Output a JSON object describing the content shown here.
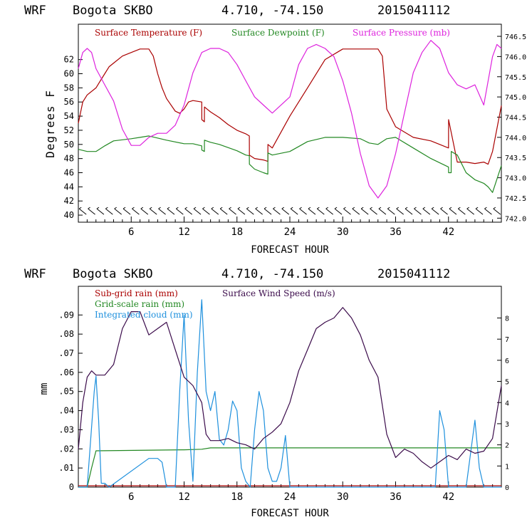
{
  "chart_data": [
    {
      "type": "line",
      "header": {
        "model": "WRF",
        "station": "Bogota SKBO",
        "coords": "4.710, -74.150",
        "run": "2015041112"
      },
      "xlabel": "FORECAST HOUR",
      "ylabel": "Degrees F",
      "xlim": [
        0,
        48
      ],
      "ylim": [
        39,
        67
      ],
      "y2lim": [
        741.9,
        746.8
      ],
      "xticks": [
        "6",
        "12",
        "18",
        "24",
        "30",
        "36",
        "42"
      ],
      "yticks": [
        "40",
        "42",
        "44",
        "46",
        "48",
        "50",
        "52",
        "54",
        "56",
        "58",
        "60",
        "62"
      ],
      "y2ticks": [
        "742.0",
        "742.5",
        "743.0",
        "743.5",
        "744.0",
        "744.5",
        "745.0",
        "745.5",
        "746.0",
        "746.5"
      ],
      "wind_barbs": "yes",
      "series": [
        {
          "name": "Surface Temperature (F)",
          "color": "#aa0000",
          "axis": "left",
          "x": [
            0,
            0.5,
            1,
            2,
            2.5,
            3,
            3.5,
            4,
            5,
            6,
            7,
            8,
            8.5,
            9,
            9.5,
            10,
            11,
            11.5,
            12,
            12.5,
            13,
            14,
            14.01,
            14.3,
            14.31,
            15,
            16,
            17,
            18,
            19,
            19.4,
            19.41,
            20,
            21,
            21.5,
            21.51,
            22,
            24,
            26,
            28,
            30,
            32,
            34,
            34.5,
            35,
            36,
            38,
            40,
            42,
            42.01,
            43,
            44,
            45,
            46,
            46.5,
            47,
            48
          ],
          "values": [
            53,
            56,
            57,
            58,
            59,
            60,
            61,
            61.5,
            62.5,
            63,
            63.5,
            63.5,
            62.5,
            60,
            58,
            56.5,
            54.7,
            54.4,
            55,
            56,
            56.2,
            56,
            53.5,
            53.2,
            55.3,
            54.6,
            53.8,
            52.8,
            52,
            51.5,
            51.2,
            48.5,
            48,
            47.8,
            47.6,
            50,
            49.5,
            54,
            58,
            62,
            63.5,
            63.5,
            63.5,
            62.5,
            55,
            52.5,
            51,
            50.5,
            49.5,
            53.5,
            47.5,
            47.5,
            47.3,
            47.5,
            47.2,
            49,
            55.5
          ]
        },
        {
          "name": "Surface Dewpoint (F)",
          "color": "#228822",
          "axis": "left",
          "x": [
            0,
            1,
            2,
            3,
            4,
            6,
            7,
            8,
            10,
            12,
            13,
            14,
            14.01,
            14.3,
            14.31,
            15,
            16,
            18,
            19,
            19.4,
            19.41,
            20,
            21,
            21.5,
            21.51,
            22,
            24,
            26,
            28,
            30,
            32,
            33,
            34,
            35,
            36,
            38,
            40,
            42,
            42.01,
            42.3,
            42.31,
            43,
            44,
            45,
            46,
            46.5,
            47,
            48
          ],
          "values": [
            49.3,
            49,
            49,
            49.8,
            50.5,
            50.8,
            51,
            51.2,
            50.6,
            50.1,
            50.1,
            49.8,
            49.2,
            49,
            50.6,
            50.3,
            50,
            49.1,
            48.5,
            48.4,
            47.2,
            46.5,
            46,
            45.8,
            48.8,
            48.5,
            49,
            50.4,
            51,
            51,
            50.8,
            50.2,
            50,
            50.8,
            51,
            49.5,
            48,
            46.8,
            46,
            46,
            49,
            48.5,
            46,
            45,
            44.5,
            44,
            43.2,
            47
          ]
        },
        {
          "name": "Surface Pressure (mb)",
          "color": "#dd22dd",
          "axis": "right",
          "x": [
            0,
            0.5,
            1,
            1.5,
            2,
            3,
            4,
            5,
            6,
            7,
            8,
            9,
            10,
            11,
            12,
            13,
            14,
            15,
            16,
            17,
            18,
            19,
            20,
            21,
            22,
            24,
            25,
            26,
            27,
            28,
            29,
            30,
            31,
            32,
            33,
            34,
            35,
            36,
            37,
            38,
            39,
            40,
            41,
            42,
            43,
            44,
            45,
            46,
            47,
            47.5,
            48
          ],
          "values": [
            745.7,
            746.1,
            746.2,
            746.1,
            745.7,
            745.3,
            744.9,
            744.2,
            743.8,
            743.8,
            744.0,
            744.1,
            744.1,
            744.3,
            744.8,
            745.6,
            746.1,
            746.2,
            746.2,
            746.1,
            745.8,
            745.4,
            745.0,
            744.8,
            744.6,
            745.0,
            745.8,
            746.2,
            746.3,
            746.2,
            746.0,
            745.4,
            744.6,
            743.6,
            742.8,
            742.5,
            742.8,
            743.6,
            744.6,
            745.6,
            746.1,
            746.4,
            746.2,
            745.6,
            745.3,
            745.2,
            745.3,
            744.8,
            746.0,
            746.3,
            746.2
          ]
        }
      ]
    },
    {
      "type": "line",
      "header": {
        "model": "WRF",
        "station": "Bogota SKBO",
        "coords": "4.710, -74.150",
        "run": "2015041112"
      },
      "xlabel": "FORECAST HOUR",
      "ylabel": "mm",
      "xlim": [
        0,
        48
      ],
      "ylim": [
        0,
        0.105
      ],
      "y2lim": [
        0,
        9.5
      ],
      "xticks": [
        "6",
        "12",
        "18",
        "24",
        "30",
        "36",
        "42"
      ],
      "yticks": [
        "0",
        ".01",
        ".02",
        ".03",
        ".04",
        ".05",
        ".06",
        ".07",
        ".08",
        ".09"
      ],
      "y2ticks": [
        "0",
        "1",
        "2",
        "3",
        "4",
        "5",
        "6",
        "7",
        "8"
      ],
      "series": [
        {
          "name": "Sub-grid rain (mm)",
          "color": "#aa0000",
          "axis": "left",
          "x": [
            0,
            48
          ],
          "values": [
            0.0007,
            0.0007
          ]
        },
        {
          "name": "Grid-scale rain (mm)",
          "color": "#228822",
          "axis": "left",
          "x": [
            0,
            1,
            1.5,
            2,
            12,
            14,
            15,
            48
          ],
          "values": [
            0,
            0,
            0.01,
            0.019,
            0.0195,
            0.0198,
            0.0205,
            0.0205
          ]
        },
        {
          "name": "Integrated cloud (mm)",
          "color": "#1e90dd",
          "axis": "left",
          "x": [
            0,
            1,
            1.8,
            2,
            2.3,
            2.6,
            3,
            3.5,
            8,
            9,
            9.5,
            10,
            10.5,
            11,
            11.5,
            12,
            12.5,
            13,
            13.5,
            14,
            14.5,
            15,
            15.5,
            16,
            16.5,
            17,
            17.5,
            18,
            18.5,
            19,
            19.5,
            20,
            20.5,
            21,
            21.5,
            22,
            22.5,
            23,
            23.5,
            24,
            24.5,
            25,
            36,
            40.5,
            41,
            41.5,
            42,
            42.5,
            44,
            45,
            45.5,
            46,
            46.5,
            47,
            48
          ],
          "values": [
            0,
            0,
            0.05,
            0.058,
            0.035,
            0.002,
            0.002,
            0,
            0.015,
            0.015,
            0.013,
            0,
            0,
            0,
            0.05,
            0.09,
            0.035,
            0.003,
            0.06,
            0.098,
            0.05,
            0.04,
            0.05,
            0.025,
            0.022,
            0.03,
            0.045,
            0.04,
            0.01,
            0.003,
            0,
            0.03,
            0.05,
            0.04,
            0.01,
            0.003,
            0.003,
            0.01,
            0.027,
            0,
            0,
            0,
            0,
            0,
            0.04,
            0.03,
            0,
            0,
            0,
            0.035,
            0.01,
            0,
            0,
            0,
            0
          ]
        },
        {
          "name": "Surface Wind Speed (m/s)",
          "color": "#3a0a4a",
          "axis": "right",
          "x": [
            0,
            0.5,
            1,
            1.5,
            2,
            3,
            4,
            5,
            6,
            7,
            8,
            9,
            10,
            11,
            12,
            13,
            14,
            14.5,
            15,
            16,
            17,
            18,
            19,
            20,
            21,
            22,
            23,
            24,
            25,
            26,
            27,
            28,
            29,
            30,
            31,
            32,
            33,
            34,
            35,
            36,
            37,
            38,
            39,
            40,
            41,
            42,
            43,
            44,
            45,
            46,
            47,
            48
          ],
          "values": [
            1.8,
            4,
            5.2,
            5.5,
            5.3,
            5.3,
            5.8,
            7.5,
            8.3,
            8.3,
            7.2,
            7.5,
            7.8,
            6.5,
            5.2,
            4.8,
            4.0,
            2.5,
            2.2,
            2.2,
            2.3,
            2.1,
            2.0,
            1.8,
            2.3,
            2.6,
            3.0,
            4.0,
            5.5,
            6.5,
            7.5,
            7.8,
            8.0,
            8.5,
            8.0,
            7.2,
            6.0,
            5.2,
            2.5,
            1.4,
            1.8,
            1.6,
            1.2,
            0.9,
            1.2,
            1.5,
            1.3,
            1.8,
            1.6,
            1.7,
            2.3,
            4.8
          ]
        }
      ]
    }
  ]
}
